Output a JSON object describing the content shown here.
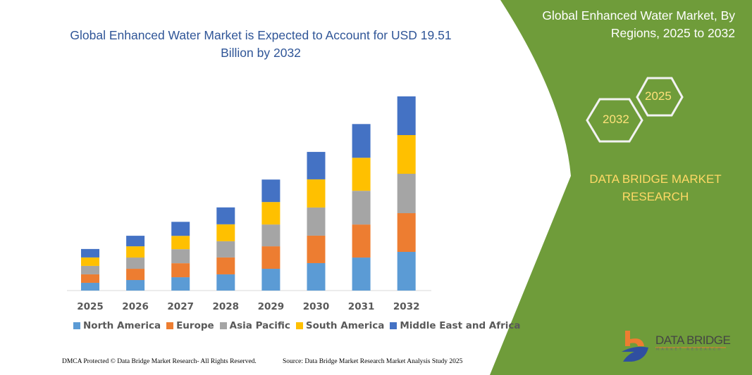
{
  "title": "Global Enhanced Water Market is Expected to Account for USD 19.51 Billion by 2032",
  "side_panel": {
    "title": "Global Enhanced Water Market, By Regions, 2025 to 2032",
    "hex_years": [
      "2025",
      "2032"
    ],
    "brand": "DATA BRIDGE MARKET RESEARCH",
    "logo_text": "DATA BRIDGE",
    "logo_sub": "MARKET RESEARCH",
    "panel_color": "#6f9c3a"
  },
  "footer": {
    "left": "DMCA Protected © Data Bridge Market Research-  All Rights Reserved.",
    "right": "Source: Data Bridge Market Research  Market Analysis Study 2025"
  },
  "chart_data": {
    "type": "bar",
    "stacked": true,
    "title": "Global Enhanced Water Market is Expected to Account for USD 19.51 Billion by 2032",
    "xlabel": "",
    "ylabel": "",
    "y_axis_visible": false,
    "grid": false,
    "legend_position": "bottom",
    "categories": [
      "2025",
      "2026",
      "2027",
      "2028",
      "2029",
      "2030",
      "2031",
      "2032"
    ],
    "series": [
      {
        "name": "North America",
        "color": "#5b9bd5",
        "values": [
          0.78,
          1.06,
          1.34,
          1.63,
          2.19,
          2.76,
          3.32,
          3.89
        ]
      },
      {
        "name": "Europe",
        "color": "#ed7d31",
        "values": [
          0.85,
          1.13,
          1.41,
          1.7,
          2.26,
          2.76,
          3.32,
          3.89
        ]
      },
      {
        "name": "Asia Pacific",
        "color": "#a5a5a5",
        "values": [
          0.85,
          1.13,
          1.41,
          1.63,
          2.19,
          2.83,
          3.39,
          3.96
        ]
      },
      {
        "name": "South America",
        "color": "#ffc000",
        "values": [
          0.85,
          1.13,
          1.34,
          1.7,
          2.26,
          2.83,
          3.32,
          3.89
        ]
      },
      {
        "name": "Middle East and Africa",
        "color": "#4472c4",
        "values": [
          0.85,
          1.06,
          1.41,
          1.7,
          2.26,
          2.76,
          3.39,
          3.89
        ]
      }
    ]
  }
}
